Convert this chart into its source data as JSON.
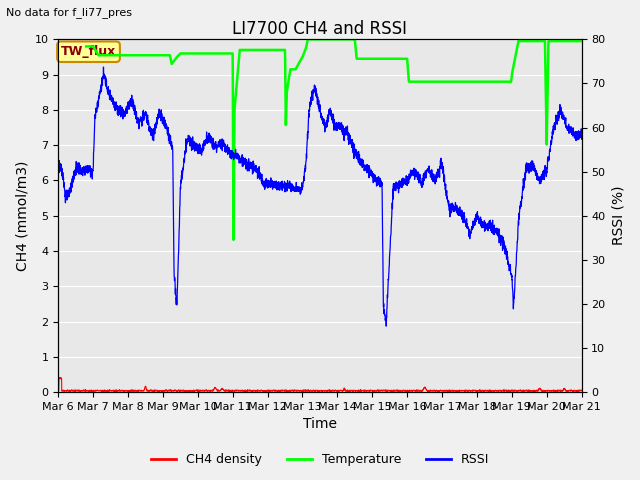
{
  "title": "LI7700 CH4 and RSSI",
  "top_left_text": "No data for f_li77_pres",
  "xlabel": "Time",
  "ylabel_left": "CH4 (mmol/m3)",
  "ylabel_right": "RSSI (%)",
  "annotation_box": "TW_flux",
  "ylim_left": [
    0.0,
    10.0
  ],
  "ylim_right": [
    0,
    80
  ],
  "yticks_left": [
    0.0,
    1.0,
    2.0,
    3.0,
    4.0,
    5.0,
    6.0,
    7.0,
    8.0,
    9.0,
    10.0
  ],
  "yticks_right": [
    0,
    10,
    20,
    30,
    40,
    50,
    60,
    70,
    80
  ],
  "xtick_labels": [
    "Mar 6",
    "Mar 7",
    "Mar 8",
    "Mar 9",
    "Mar 10",
    "Mar 11",
    "Mar 12",
    "Mar 13",
    "Mar 14",
    "Mar 15",
    "Mar 16",
    "Mar 17",
    "Mar 18",
    "Mar 19",
    "Mar 20",
    "Mar 21"
  ],
  "bg_color": "#e8e8e8",
  "grid_color": "#ffffff",
  "ch4_color": "#ff0000",
  "temp_color": "#00ff00",
  "rssi_color": "#0000ff",
  "legend_labels": [
    "CH4 density",
    "Temperature",
    "RSSI"
  ],
  "title_fontsize": 12,
  "axis_label_fontsize": 10,
  "tick_fontsize": 8,
  "fig_bg": "#f0f0f0"
}
